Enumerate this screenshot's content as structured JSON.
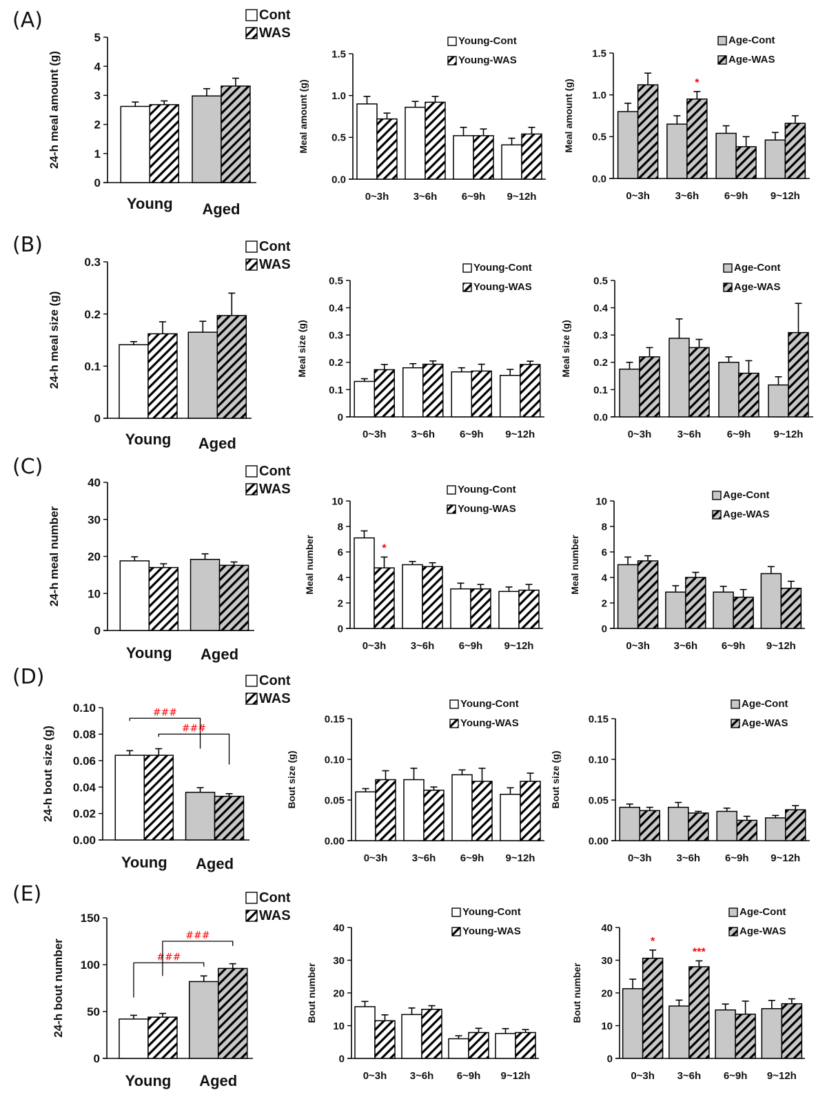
{
  "figure": {
    "row_labels": [
      "(A)",
      "(B)",
      "(C)",
      "(D)",
      "(E)"
    ]
  },
  "colors": {
    "young_fill": "#ffffff",
    "aged_fill": "#c8c8c8",
    "stroke": "#000000",
    "significance": "#ff0000"
  },
  "chart_data": [
    {
      "id": "A1",
      "row": "A",
      "type": "bar",
      "ylabel": "24-h meal amount (g)",
      "ylim": [
        0,
        5
      ],
      "yticks": [
        "0",
        "1",
        "2",
        "3",
        "4",
        "5"
      ],
      "categories": [
        "Young",
        "Aged"
      ],
      "legend": [
        {
          "label": "Cont",
          "pattern": "solid"
        },
        {
          "label": "WAS",
          "pattern": "hatch"
        }
      ],
      "legend_position": "top-right",
      "series": [
        {
          "name": "Cont",
          "values": [
            2.62,
            2.98
          ],
          "errors": [
            0.15,
            0.25
          ]
        },
        {
          "name": "WAS",
          "values": [
            2.68,
            3.32
          ],
          "errors": [
            0.13,
            0.27
          ]
        }
      ],
      "annotations": []
    },
    {
      "id": "A2",
      "row": "A",
      "type": "bar",
      "ylabel": "Meal amount (g)",
      "ylim": [
        0,
        1.5
      ],
      "yticks": [
        "0.0",
        "0.5",
        "1.0",
        "1.5"
      ],
      "categories": [
        "0~3h",
        "3~6h",
        "6~9h",
        "9~12h"
      ],
      "legend": [
        {
          "label": "Young-Cont",
          "pattern": "solid"
        },
        {
          "label": "Young-WAS",
          "pattern": "hatch"
        }
      ],
      "legend_position": "top-right",
      "series": [
        {
          "name": "Young-Cont",
          "values": [
            0.9,
            0.86,
            0.52,
            0.41
          ],
          "errors": [
            0.09,
            0.07,
            0.1,
            0.08
          ]
        },
        {
          "name": "Young-WAS",
          "values": [
            0.72,
            0.92,
            0.52,
            0.54
          ],
          "errors": [
            0.07,
            0.07,
            0.08,
            0.08
          ]
        }
      ],
      "annotations": []
    },
    {
      "id": "A3",
      "row": "A",
      "type": "bar",
      "ylabel": "Meal amount (g)",
      "ylim": [
        0,
        1.5
      ],
      "yticks": [
        "0.0",
        "0.5",
        "1.0",
        "1.5"
      ],
      "categories": [
        "0~3h",
        "3~6h",
        "6~9h",
        "9~12h"
      ],
      "legend": [
        {
          "label": "Age-Cont",
          "pattern": "solid"
        },
        {
          "label": "Age-WAS",
          "pattern": "hatch"
        }
      ],
      "legend_position": "top-right",
      "series": [
        {
          "name": "Age-Cont",
          "values": [
            0.8,
            0.65,
            0.54,
            0.46
          ],
          "errors": [
            0.1,
            0.1,
            0.09,
            0.09
          ]
        },
        {
          "name": "Age-WAS",
          "values": [
            1.12,
            0.95,
            0.38,
            0.66
          ],
          "errors": [
            0.14,
            0.09,
            0.12,
            0.09
          ]
        }
      ],
      "annotations": [
        {
          "text": "*",
          "category": 1,
          "series": 1
        }
      ]
    },
    {
      "id": "B1",
      "row": "B",
      "type": "bar",
      "ylabel": "24-h meal size (g)",
      "ylim": [
        0,
        0.3
      ],
      "yticks": [
        "0",
        "0.1",
        "0.2",
        "0.3"
      ],
      "categories": [
        "Young",
        "Aged"
      ],
      "legend": [
        {
          "label": "Cont",
          "pattern": "solid"
        },
        {
          "label": "WAS",
          "pattern": "hatch"
        }
      ],
      "legend_position": "top-right",
      "series": [
        {
          "name": "Cont",
          "values": [
            0.141,
            0.165
          ],
          "errors": [
            0.006,
            0.021
          ]
        },
        {
          "name": "WAS",
          "values": [
            0.162,
            0.197
          ],
          "errors": [
            0.023,
            0.043
          ]
        }
      ],
      "annotations": []
    },
    {
      "id": "B2",
      "row": "B",
      "type": "bar",
      "ylabel": "Meal size (g)",
      "ylim": [
        0,
        0.5
      ],
      "yticks": [
        "0",
        "0.1",
        "0.2",
        "0.3",
        "0.4",
        "0.5"
      ],
      "categories": [
        "0~3h",
        "3~6h",
        "6~9h",
        "9~12h"
      ],
      "legend": [
        {
          "label": "Young-Cont",
          "pattern": "solid"
        },
        {
          "label": "Young-WAS",
          "pattern": "hatch"
        }
      ],
      "legend_position": "top-right",
      "series": [
        {
          "name": "Young-Cont",
          "values": [
            0.13,
            0.18,
            0.165,
            0.152
          ],
          "errors": [
            0.01,
            0.015,
            0.015,
            0.022
          ]
        },
        {
          "name": "Young-WAS",
          "values": [
            0.173,
            0.193,
            0.168,
            0.192
          ],
          "errors": [
            0.019,
            0.012,
            0.025,
            0.012
          ]
        }
      ],
      "annotations": []
    },
    {
      "id": "B3",
      "row": "B",
      "type": "bar",
      "ylabel": "Meal size (g)",
      "ylim": [
        0,
        0.5
      ],
      "yticks": [
        "0.0",
        "0.1",
        "0.2",
        "0.3",
        "0.4",
        "0.5"
      ],
      "categories": [
        "0~3h",
        "3~6h",
        "6~9h",
        "9~12h"
      ],
      "legend": [
        {
          "label": "Age-Cont",
          "pattern": "solid"
        },
        {
          "label": "Age-WAS",
          "pattern": "hatch"
        }
      ],
      "legend_position": "top-right",
      "series": [
        {
          "name": "Age-Cont",
          "values": [
            0.175,
            0.288,
            0.2,
            0.117
          ],
          "errors": [
            0.025,
            0.071,
            0.02,
            0.03
          ]
        },
        {
          "name": "Age-WAS",
          "values": [
            0.22,
            0.254,
            0.16,
            0.309
          ],
          "errors": [
            0.034,
            0.03,
            0.046,
            0.107
          ]
        }
      ],
      "annotations": []
    },
    {
      "id": "C1",
      "row": "C",
      "type": "bar",
      "ylabel": "24-h meal number",
      "ylim": [
        0,
        40
      ],
      "yticks": [
        "0",
        "10",
        "20",
        "30",
        "40"
      ],
      "categories": [
        "Young",
        "Aged"
      ],
      "legend": [
        {
          "label": "Cont",
          "pattern": "solid"
        },
        {
          "label": "WAS",
          "pattern": "hatch"
        }
      ],
      "legend_position": "top-right",
      "series": [
        {
          "name": "Cont",
          "values": [
            18.8,
            19.2
          ],
          "errors": [
            1.1,
            1.5
          ]
        },
        {
          "name": "WAS",
          "values": [
            17.0,
            17.6
          ],
          "errors": [
            1.0,
            0.9
          ]
        }
      ],
      "annotations": []
    },
    {
      "id": "C2",
      "row": "C",
      "type": "bar",
      "ylabel": "Meal number",
      "ylim": [
        0,
        10
      ],
      "yticks": [
        "0",
        "2",
        "4",
        "6",
        "8",
        "10"
      ],
      "categories": [
        "0~3h",
        "3~6h",
        "6~9h",
        "9~12h"
      ],
      "legend": [
        {
          "label": "Young-Cont",
          "pattern": "solid"
        },
        {
          "label": "Young-WAS",
          "pattern": "hatch"
        }
      ],
      "legend_position": "top-right",
      "series": [
        {
          "name": "Young-Cont",
          "values": [
            7.1,
            5.0,
            3.1,
            2.9
          ],
          "errors": [
            0.55,
            0.25,
            0.45,
            0.35
          ]
        },
        {
          "name": "Young-WAS",
          "values": [
            4.75,
            4.85,
            3.1,
            3.0
          ],
          "errors": [
            0.85,
            0.3,
            0.35,
            0.45
          ]
        }
      ],
      "annotations": [
        {
          "text": "*",
          "category": 0,
          "series": 1
        }
      ]
    },
    {
      "id": "C3",
      "row": "C",
      "type": "bar",
      "ylabel": "Meal number",
      "ylim": [
        0,
        10
      ],
      "yticks": [
        "0",
        "2",
        "4",
        "6",
        "8",
        "10"
      ],
      "categories": [
        "0~3h",
        "3~6h",
        "6~9h",
        "9~12h"
      ],
      "legend": [
        {
          "label": "Age-Cont",
          "pattern": "solid"
        },
        {
          "label": "Age-WAS",
          "pattern": "hatch"
        }
      ],
      "legend_position": "top-right",
      "series": [
        {
          "name": "Age-Cont",
          "values": [
            5.0,
            2.85,
            2.85,
            4.3
          ],
          "errors": [
            0.6,
            0.5,
            0.45,
            0.55
          ]
        },
        {
          "name": "Age-WAS",
          "values": [
            5.3,
            4.0,
            2.45,
            3.15
          ],
          "errors": [
            0.4,
            0.4,
            0.6,
            0.55
          ]
        }
      ],
      "annotations": []
    },
    {
      "id": "D1",
      "row": "D",
      "type": "bar",
      "ylabel": "24-h bout size (g)",
      "ylim": [
        0,
        0.1
      ],
      "yticks": [
        "0.00",
        "0.02",
        "0.04",
        "0.06",
        "0.08",
        "0.10"
      ],
      "categories": [
        "Young",
        "Aged"
      ],
      "legend": [
        {
          "label": "Cont",
          "pattern": "solid"
        },
        {
          "label": "WAS",
          "pattern": "hatch"
        }
      ],
      "legend_position": "top-right",
      "series": [
        {
          "name": "Cont",
          "values": [
            0.064,
            0.036
          ],
          "errors": [
            0.0035,
            0.0035
          ]
        },
        {
          "name": "WAS",
          "values": [
            0.064,
            0.033
          ],
          "errors": [
            0.005,
            0.002
          ]
        }
      ],
      "annotations": [],
      "brackets": [
        {
          "text": "###",
          "from": [
            0,
            0
          ],
          "to": [
            1,
            0
          ],
          "level": 0.092,
          "drop_from": 0.09,
          "drop_to": 0.069
        },
        {
          "text": "###",
          "from": [
            0,
            1
          ],
          "to": [
            1,
            1
          ],
          "level": 0.08,
          "drop_from": 0.078,
          "drop_to": 0.057
        }
      ]
    },
    {
      "id": "D2",
      "row": "D",
      "type": "bar",
      "ylabel": "Bout  size (g)",
      "ylim": [
        0,
        0.15
      ],
      "yticks": [
        "0.00",
        "0.05",
        "0.10",
        "0.15"
      ],
      "categories": [
        "0~3h",
        "3~6h",
        "6~9h",
        "9~12h"
      ],
      "legend": [
        {
          "label": "Young-Cont",
          "pattern": "solid"
        },
        {
          "label": "Young-WAS",
          "pattern": "hatch"
        }
      ],
      "legend_position": "top-right",
      "series": [
        {
          "name": "Young-Cont",
          "values": [
            0.06,
            0.075,
            0.081,
            0.057
          ],
          "errors": [
            0.004,
            0.014,
            0.006,
            0.008
          ]
        },
        {
          "name": "Young-WAS",
          "values": [
            0.075,
            0.062,
            0.073,
            0.073
          ],
          "errors": [
            0.011,
            0.004,
            0.016,
            0.01
          ]
        }
      ],
      "annotations": []
    },
    {
      "id": "D3",
      "row": "D",
      "type": "bar",
      "ylabel": "Bout size (g)",
      "ylim": [
        0,
        0.15
      ],
      "yticks": [
        "0.00",
        "0.05",
        "0.10",
        "0.15"
      ],
      "categories": [
        "0~3h",
        "3~6h",
        "6~9h",
        "9~12h"
      ],
      "legend": [
        {
          "label": "Age-Cont",
          "pattern": "solid"
        },
        {
          "label": "Age-WAS",
          "pattern": "hatch"
        }
      ],
      "legend_position": "top-right",
      "series": [
        {
          "name": "Age-Cont",
          "values": [
            0.041,
            0.041,
            0.036,
            0.028
          ],
          "errors": [
            0.004,
            0.006,
            0.004,
            0.003
          ]
        },
        {
          "name": "Age-WAS",
          "values": [
            0.037,
            0.034,
            0.025,
            0.038
          ],
          "errors": [
            0.004,
            0.002,
            0.005,
            0.005
          ]
        }
      ],
      "annotations": []
    },
    {
      "id": "E1",
      "row": "E",
      "type": "bar",
      "ylabel": "24-h bout number",
      "ylim": [
        0,
        150
      ],
      "yticks": [
        "0",
        "50",
        "100",
        "150"
      ],
      "categories": [
        "Young",
        "Aged"
      ],
      "legend": [
        {
          "label": "Cont",
          "pattern": "solid"
        },
        {
          "label": "WAS",
          "pattern": "hatch"
        }
      ],
      "legend_position": "top-right",
      "series": [
        {
          "name": "Cont",
          "values": [
            42,
            82
          ],
          "errors": [
            4,
            6
          ]
        },
        {
          "name": "WAS",
          "values": [
            44,
            96
          ],
          "errors": [
            4,
            5
          ]
        }
      ],
      "annotations": [],
      "brackets": [
        {
          "text": "###",
          "from": [
            0,
            0
          ],
          "to": [
            1,
            0
          ],
          "level": 102,
          "drop_from": 65,
          "drop_to": 98
        },
        {
          "text": "###",
          "from": [
            0,
            1
          ],
          "to": [
            1,
            1
          ],
          "level": 125,
          "drop_from": 88,
          "drop_to": 120
        }
      ]
    },
    {
      "id": "E2",
      "row": "E",
      "type": "bar",
      "ylabel": "Bout number",
      "ylim": [
        0,
        40
      ],
      "yticks": [
        "0",
        "10",
        "20",
        "30",
        "40"
      ],
      "categories": [
        "0~3h",
        "3~6h",
        "6~9h",
        "9~12h"
      ],
      "legend": [
        {
          "label": "Young-Cont",
          "pattern": "solid"
        },
        {
          "label": "Young-WAS",
          "pattern": "hatch"
        }
      ],
      "legend_position": "top-right",
      "series": [
        {
          "name": "Young-Cont",
          "values": [
            15.8,
            13.4,
            6.0,
            7.6
          ],
          "errors": [
            1.6,
            2.0,
            0.9,
            1.5
          ]
        },
        {
          "name": "Young-WAS",
          "values": [
            11.5,
            15.0,
            7.9,
            7.9
          ],
          "errors": [
            1.8,
            1.1,
            1.3,
            0.9
          ]
        }
      ],
      "annotations": []
    },
    {
      "id": "E3",
      "row": "E",
      "type": "bar",
      "ylabel": "Bout number",
      "ylim": [
        0,
        40
      ],
      "yticks": [
        "0",
        "10",
        "20",
        "30",
        "40"
      ],
      "categories": [
        "0~3h",
        "3~6h",
        "6~9h",
        "9~12h"
      ],
      "legend": [
        {
          "label": "Age-Cont",
          "pattern": "solid"
        },
        {
          "label": "Age-WAS",
          "pattern": "hatch"
        }
      ],
      "legend_position": "top-right",
      "series": [
        {
          "name": "Age-Cont",
          "values": [
            21.3,
            16.0,
            14.8,
            15.2
          ],
          "errors": [
            2.9,
            1.8,
            1.8,
            2.5
          ]
        },
        {
          "name": "Age-WAS",
          "values": [
            30.6,
            28.0,
            13.5,
            16.7
          ],
          "errors": [
            2.5,
            1.8,
            4.0,
            1.5
          ]
        }
      ],
      "annotations": [
        {
          "text": "*",
          "category": 0,
          "series": 1
        },
        {
          "text": "***",
          "category": 1,
          "series": 1
        }
      ]
    }
  ]
}
